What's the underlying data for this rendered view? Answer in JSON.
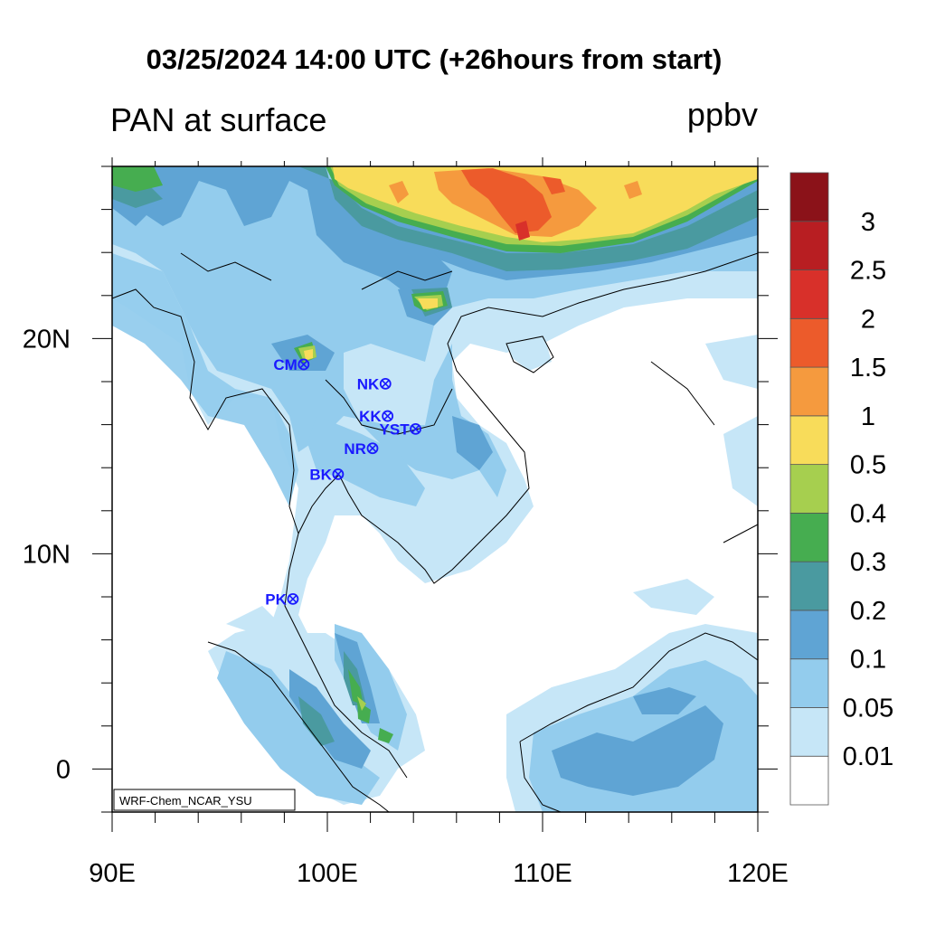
{
  "header": {
    "title": "03/25/2024 14:00 UTC (+26hours from start)",
    "variable": "PAN at surface",
    "units": "ppbv"
  },
  "map": {
    "lon_range": [
      90,
      120
    ],
    "lat_range": [
      -2,
      28
    ],
    "x_ticks": [
      {
        "value": 90,
        "label": "90E"
      },
      {
        "value": 100,
        "label": "100E"
      },
      {
        "value": 110,
        "label": "110E"
      },
      {
        "value": 120,
        "label": "120E"
      }
    ],
    "y_ticks": [
      {
        "value": 0,
        "label": "0"
      },
      {
        "value": 10,
        "label": "10N"
      },
      {
        "value": 20,
        "label": "20N"
      }
    ],
    "credit": "WRF-Chem_NCAR_YSU",
    "ocean_color": "#ffffff"
  },
  "stations": [
    {
      "id": "CM",
      "label": "CM",
      "lon": 98.9,
      "lat": 18.8
    },
    {
      "id": "NK",
      "label": "NK",
      "lon": 102.7,
      "lat": 17.9
    },
    {
      "id": "KK",
      "label": "KK",
      "lon": 102.8,
      "lat": 16.4
    },
    {
      "id": "YST",
      "label": "YST",
      "lon": 104.1,
      "lat": 15.8
    },
    {
      "id": "NR",
      "label": "NR",
      "lon": 102.1,
      "lat": 14.9
    },
    {
      "id": "BK",
      "label": "BK",
      "lon": 100.5,
      "lat": 13.7
    },
    {
      "id": "PK",
      "label": "PK",
      "lon": 98.4,
      "lat": 7.9
    }
  ],
  "colorbar": {
    "levels": [
      "0.01",
      "0.05",
      "0.1",
      "0.2",
      "0.3",
      "0.4",
      "0.5",
      "1",
      "1.5",
      "2",
      "2.5",
      "3"
    ],
    "colors": [
      "#ffffff",
      "#c6e6f7",
      "#93cced",
      "#5fa4d4",
      "#4a9aa0",
      "#46ad50",
      "#a6cf4f",
      "#f8dc5a",
      "#f59a3e",
      "#ec5b2b",
      "#d8302a",
      "#b81e22",
      "#8b1219"
    ]
  },
  "chart_data": {
    "type": "heatmap",
    "title": "03/25/2024 14:00 UTC (+26hours from start)",
    "subtitle": "PAN at surface",
    "units": "ppbv",
    "xlim": [
      90,
      120
    ],
    "ylim": [
      -2,
      28
    ],
    "xlabel": "",
    "ylabel": ""
  }
}
